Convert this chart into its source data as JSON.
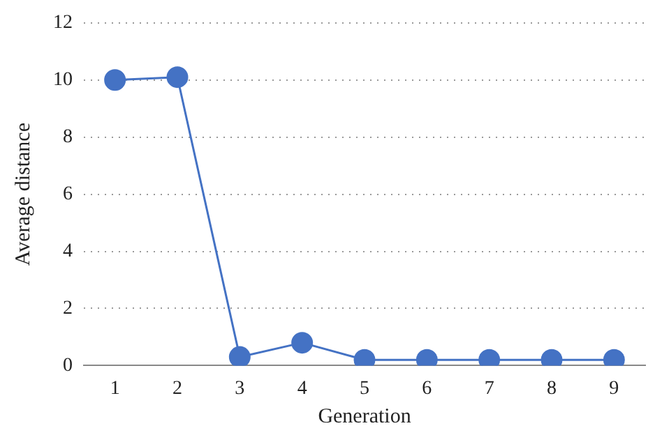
{
  "chart_data": {
    "type": "line",
    "xlabel": "Generation",
    "ylabel": "Average distance",
    "categories": [
      "1",
      "2",
      "3",
      "4",
      "5",
      "6",
      "7",
      "8",
      "9"
    ],
    "series": [
      {
        "color": "#4472c4",
        "values": [
          10,
          10.1,
          0.3,
          0.8,
          0.2,
          0.2,
          0.2,
          0.2,
          0.2
        ]
      }
    ],
    "ylim": [
      0,
      12
    ],
    "yticks": [
      0,
      2,
      4,
      6,
      8,
      10,
      12
    ],
    "grid": "y",
    "marker": "circle",
    "line_style": "solid",
    "legend": false
  }
}
